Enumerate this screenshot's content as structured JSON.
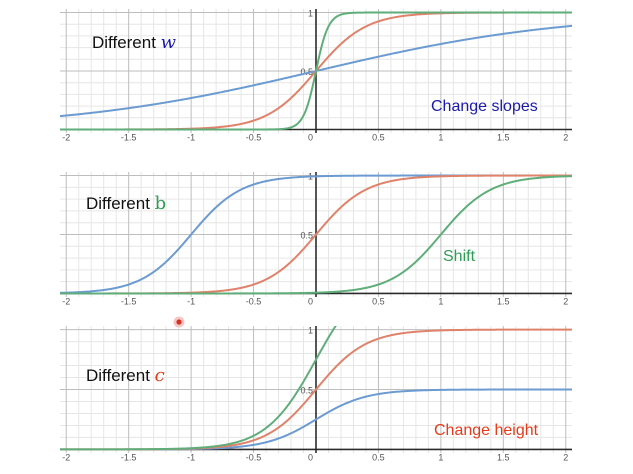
{
  "colors": {
    "blue": "#6b9bd1",
    "red": "#e0826a",
    "green": "#5fae7a",
    "w_letter": "#1a1aa8",
    "b_letter": "#2e9c55",
    "c_letter": "#e53b1b",
    "change_slopes": "#1a1aa8",
    "shift": "#2e9c55",
    "change_height": "#e53b1b"
  },
  "chart_data": [
    {
      "type": "line",
      "title_text": "Different ",
      "title_var": "w",
      "annotation": "Change slopes",
      "annotation_color_key": "change_slopes",
      "var_color_key": "w_letter",
      "var_italic": true,
      "xlim": [
        -2.05,
        2.05
      ],
      "ylim": [
        -0.03,
        1.03
      ],
      "x_ticks": [
        -2,
        -1.5,
        -1,
        -0.5,
        0,
        0.5,
        1,
        1.5,
        2
      ],
      "x_tick_labels": [
        "-2",
        "-1.5",
        "-1",
        "-0.5",
        "0",
        "0.5",
        "1",
        "1.5",
        "2"
      ],
      "y_ticks": [
        0.5,
        1
      ],
      "y_tick_labels": [
        "0.5",
        "1"
      ],
      "series": [
        {
          "name": "blue",
          "color_key": "blue",
          "w": 1,
          "b": 0,
          "c": 1
        },
        {
          "name": "red",
          "color_key": "red",
          "w": 5,
          "b": 0,
          "c": 1
        },
        {
          "name": "green",
          "color_key": "green",
          "w": 20,
          "b": 0,
          "c": 1
        }
      ]
    },
    {
      "type": "line",
      "title_text": "Different ",
      "title_var": "b",
      "annotation": "Shift",
      "annotation_color_key": "shift",
      "var_color_key": "b_letter",
      "var_italic": false,
      "xlim": [
        -2.05,
        2.05
      ],
      "ylim": [
        -0.03,
        1.03
      ],
      "x_ticks": [
        -2,
        -1.5,
        -1,
        -0.5,
        0,
        0.5,
        1,
        1.5,
        2
      ],
      "x_tick_labels": [
        "-2",
        "-1.5",
        "-1",
        "-0.5",
        "0",
        "0.5",
        "1",
        "1.5",
        "2"
      ],
      "y_ticks": [
        0.5,
        1
      ],
      "y_tick_labels": [
        "0.5",
        "1"
      ],
      "series": [
        {
          "name": "blue",
          "color_key": "blue",
          "w": 5,
          "b": 5,
          "c": 1
        },
        {
          "name": "red",
          "color_key": "red",
          "w": 5,
          "b": 0,
          "c": 1
        },
        {
          "name": "green",
          "color_key": "green",
          "w": 5,
          "b": -5,
          "c": 1
        }
      ]
    },
    {
      "type": "line",
      "title_text": "Different ",
      "title_var": "c",
      "annotation": "Change height",
      "annotation_color_key": "change_height",
      "var_color_key": "c_letter",
      "var_italic": true,
      "xlim": [
        -2.05,
        2.05
      ],
      "ylim": [
        -0.03,
        1.03
      ],
      "x_ticks": [
        -2,
        -1.5,
        -1,
        -0.5,
        0,
        0.5,
        1,
        1.5,
        2
      ],
      "x_tick_labels": [
        "-2",
        "-1.5",
        "-1",
        "-0.5",
        "0",
        "0.5",
        "1",
        "1.5",
        "2"
      ],
      "y_ticks": [
        0.5,
        1
      ],
      "y_tick_labels": [
        "0.5",
        "1"
      ],
      "series": [
        {
          "name": "blue",
          "color_key": "blue",
          "w": 5,
          "b": 0,
          "c": 0.5
        },
        {
          "name": "red",
          "color_key": "red",
          "w": 5,
          "b": 0,
          "c": 1
        },
        {
          "name": "green",
          "color_key": "green",
          "w": 5,
          "b": 0,
          "c": 1.5
        }
      ]
    }
  ]
}
